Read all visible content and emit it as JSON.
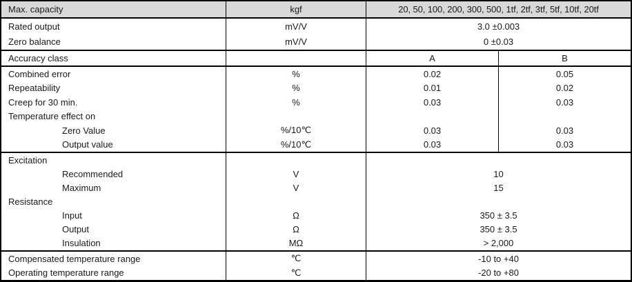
{
  "colors": {
    "header_bg": "#d9d9d9",
    "border": "#000000",
    "text": "#1a1a1a"
  },
  "table": {
    "header": {
      "label": "Max. capacity",
      "unit": "kgf",
      "value": "20, 50, 100, 200, 300, 500, 1tf, 2tf, 3tf, 5tf, 10tf, 20tf"
    },
    "output_rows": [
      {
        "label": "Rated output",
        "unit": "mV/V",
        "value": "3.0 ±0.003"
      },
      {
        "label": "Zero balance",
        "unit": "mV/V",
        "value": "0 ±0.03"
      }
    ],
    "accuracy_header": {
      "label": "Accuracy class",
      "unit": "",
      "a": "A",
      "b": "B"
    },
    "accuracy_rows": [
      {
        "label": "Combined error",
        "unit": "%",
        "a": "0.02",
        "b": "0.05"
      },
      {
        "label": "Repeatability",
        "unit": "%",
        "a": "0.01",
        "b": "0.02"
      },
      {
        "label": "Creep for 30 min.",
        "unit": "%",
        "a": "0.03",
        "b": "0.03"
      },
      {
        "label": "Temperature effect on",
        "unit": "",
        "a": "",
        "b": ""
      },
      {
        "label": "Zero Value",
        "unit": "%/10℃",
        "a": "0.03",
        "b": "0.03"
      },
      {
        "label": "Output value",
        "unit": "%/10℃",
        "a": "0.03",
        "b": "0.03"
      }
    ],
    "electrical_rows": [
      {
        "label": "Excitation",
        "unit": "",
        "value": ""
      },
      {
        "label": "Recommended",
        "unit": "V",
        "value": "10"
      },
      {
        "label": "Maximum",
        "unit": "V",
        "value": "15"
      },
      {
        "label": "Resistance",
        "unit": "",
        "value": ""
      },
      {
        "label": "Input",
        "unit": "Ω",
        "value": "350 ± 3.5"
      },
      {
        "label": "Output",
        "unit": "Ω",
        "value": "350 ± 3.5"
      },
      {
        "label": "Insulation",
        "unit": "MΩ",
        "value": "> 2,000"
      }
    ],
    "temperature_rows": [
      {
        "label": "Compensated temperature range",
        "unit": "℃",
        "value": "-10 to +40"
      },
      {
        "label": "Operating temperature range",
        "unit": "℃",
        "value": "-20 to +80"
      }
    ]
  }
}
